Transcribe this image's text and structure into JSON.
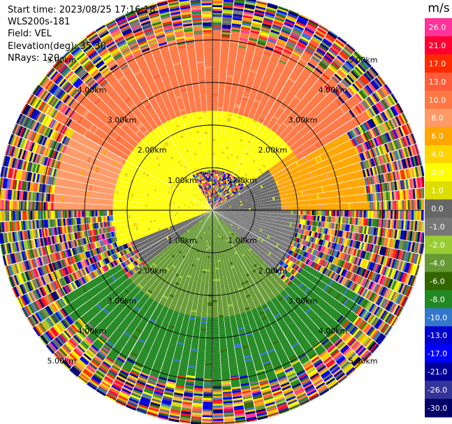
{
  "info": {
    "start_time": "Start time: 2023/08/25 17:16:18",
    "instrument": "WLS200s-181",
    "field": "Field: VEL",
    "elevation": "Elevation(deg): 35.30",
    "nrays": "NRays: 120"
  },
  "colorbar": {
    "unit": "m/s",
    "ticks": [
      "26.0",
      "21.0",
      "17.0",
      "13.0",
      "10.0",
      "8.0",
      "6.0",
      "4.0",
      "2.0",
      "1.0",
      "0.0",
      "-1.0",
      "-2.0",
      "-4.0",
      "-6.0",
      "-8.0",
      "-10.0",
      "-13.0",
      "-17.0",
      "-21.0",
      "-26.0",
      "-30.0"
    ],
    "colors": [
      "#ff3399",
      "#ff0033",
      "#ff2a00",
      "#ff5c3a",
      "#ff7744",
      "#ff9966",
      "#ffa500",
      "#ffd400",
      "#ffff00",
      "#dddd00",
      "#666666",
      "#777777",
      "#99cc33",
      "#669933",
      "#336600",
      "#228822",
      "#3377cc",
      "#0000cc",
      "#0000ff",
      "#000099",
      "#333399",
      "#000066"
    ]
  },
  "chart_data": {
    "type": "heatmap",
    "projection": "polar (PPI)",
    "field": "VEL",
    "unit": "m/s",
    "nrays": 120,
    "range_rings_km": [
      1.0,
      2.0,
      3.0,
      4.0,
      5.0
    ],
    "ring_labels": [
      "1.00km",
      "2.00km",
      "3.00km",
      "4.00km",
      "5.00km"
    ],
    "azimuth_lines_deg": [
      0,
      30,
      60,
      90,
      120,
      150,
      180,
      210,
      240,
      270,
      300,
      330
    ],
    "color_range": [
      -30.0,
      26.0
    ],
    "sectors": [
      {
        "azimuth": [
          250,
          330
        ],
        "range_km": [
          0,
          2.3
        ],
        "velocity": 2.0
      },
      {
        "azimuth": [
          305,
          55
        ],
        "range_km": [
          0.9,
          2.3
        ],
        "velocity": 2.0
      },
      {
        "azimuth": [
          55,
          90
        ],
        "range_km": [
          0,
          1.6
        ],
        "velocity": 0.0
      },
      {
        "azimuth": [
          90,
          135
        ],
        "range_km": [
          0,
          2.0
        ],
        "velocity": -1.0
      },
      {
        "azimuth": [
          230,
          275
        ],
        "range_km": [
          0,
          2.0
        ],
        "velocity": 0.0
      },
      {
        "azimuth": [
          135,
          230
        ],
        "range_km": [
          0,
          2.5
        ],
        "velocity": -4.0
      },
      {
        "azimuth": [
          120,
          240
        ],
        "range_km": [
          2.5,
          4.2
        ],
        "velocity": -8.0
      },
      {
        "azimuth": [
          300,
          60
        ],
        "range_km": [
          2.3,
          4.3
        ],
        "velocity": 10.0
      },
      {
        "azimuth": [
          270,
          305
        ],
        "range_km": [
          2.0,
          3.7
        ],
        "velocity": 8.0
      },
      {
        "azimuth": [
          55,
          90
        ],
        "range_km": [
          1.6,
          3.6
        ],
        "velocity": 6.0
      }
    ]
  }
}
